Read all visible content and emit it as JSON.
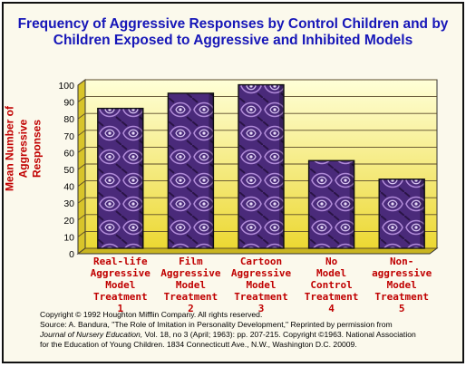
{
  "chart_data": {
    "type": "bar",
    "title": "Frequency of Aggressive Responses by Control Children and by Children Exposed to Aggressive and Inhibited Models",
    "ylabel": "Mean Number of Aggressive Responses",
    "xlabel": "",
    "ylim": [
      0,
      100
    ],
    "yticks": [
      0,
      10,
      20,
      30,
      40,
      50,
      60,
      70,
      80,
      90,
      100
    ],
    "grid": true,
    "categories": [
      "Real-life Aggressive Model Treatment 1",
      "Film Aggressive Model Treatment 2",
      "Cartoon Aggressive Model Treatment 3",
      "No Model Control Treatment 4",
      "Non-aggressive Model Treatment 5"
    ],
    "category_lines": [
      [
        "Real-life",
        "Aggressive",
        "Model",
        "Treatment",
        "1"
      ],
      [
        "Film",
        "Aggressive",
        "Model",
        "Treatment",
        "2"
      ],
      [
        "Cartoon",
        "Aggressive",
        "Model",
        "Treatment",
        "3"
      ],
      [
        "No",
        "Model",
        "Control",
        "Treatment",
        "4"
      ],
      [
        "Non-",
        "aggressive",
        "Model",
        "Treatment",
        "5"
      ]
    ],
    "values": [
      83,
      92,
      97,
      52,
      41
    ],
    "colors": {
      "title": "#1616b8",
      "labels": "#c00000",
      "plot_top": "#ffffd8",
      "plot_bottom": "#ecd832",
      "bar": "#4a2a7a",
      "grid": "#5a4a2a"
    }
  },
  "footnote": {
    "copyright": "Copyright © 1992 Houghton Mifflin Company.  All rights reserved.",
    "source_1": "Source:  A. Bandura, \"The Role of Imitation in Personality Development,\" Reprinted by permission from",
    "journal": "Journal of Nursery Education,",
    "source_2": " Vol. 18, no 3 (April; 1963): pp. 207-215.  Copyright ©1963.  National Association",
    "source_3": "for the Education of Young Children.  1834 Connecticutt Ave., N.W., Washington D.C. 20009."
  }
}
